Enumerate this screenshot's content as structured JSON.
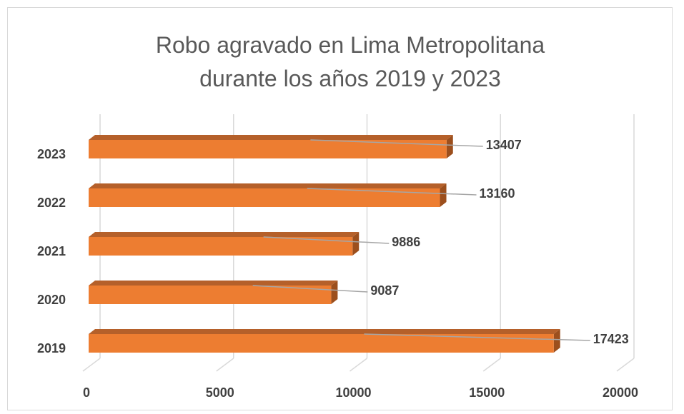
{
  "chart_data": {
    "type": "bar3d",
    "orientation": "horizontal",
    "title": "Robo agravado en Lima Metropolitana durante los años 2019 y 2023",
    "categories": [
      "2019",
      "2020",
      "2021",
      "2022",
      "2023"
    ],
    "values": [
      17423,
      9087,
      9886,
      13160,
      13407
    ],
    "color": "#ed7d31",
    "xlim": [
      0,
      20000
    ],
    "xticks": [
      0,
      5000,
      10000,
      15000,
      20000
    ],
    "grid": true
  }
}
